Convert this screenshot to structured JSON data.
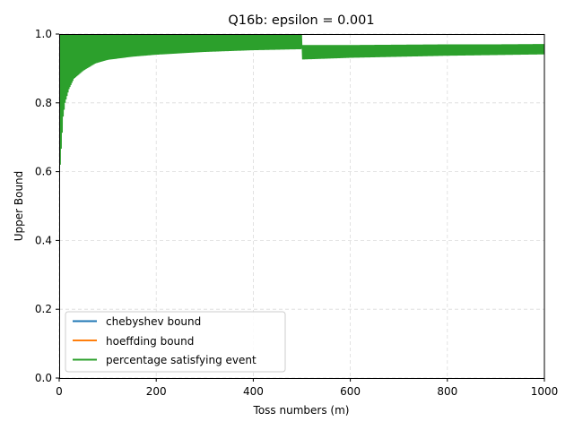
{
  "chart_data": {
    "type": "line",
    "title": "Q16b: epsilon = 0.001",
    "xlabel": "Toss numbers (m)",
    "ylabel": "Upper Bound",
    "xlim": [
      0,
      1000
    ],
    "ylim": [
      0,
      1.0
    ],
    "xticks": [
      0,
      200,
      400,
      600,
      800,
      1000
    ],
    "xtick_labels": [
      "0",
      "200",
      "400",
      "600",
      "800",
      "1000"
    ],
    "yticks": [
      0.0,
      0.2,
      0.4,
      0.6,
      0.8,
      1.0
    ],
    "ytick_labels": [
      "0.0",
      "0.2",
      "0.4",
      "0.6",
      "0.8",
      "1.0"
    ],
    "grid": true,
    "legend_position": "lower-left",
    "series": [
      {
        "name": "chebyshev bound",
        "color": "#1f77b4",
        "x": [
          1,
          1000
        ],
        "y": [
          1.0,
          1.0
        ]
      },
      {
        "name": "hoeffding bound",
        "color": "#ff7f0e",
        "x": [
          1,
          1000
        ],
        "y": [
          1.0,
          1.0
        ]
      },
      {
        "name": "percentage satisfying event",
        "color": "#2ca02c",
        "style": "oscillating band",
        "x": [
          1,
          2,
          5,
          8,
          12,
          20,
          30,
          50,
          75,
          100,
          150,
          200,
          300,
          400,
          499,
          500,
          501,
          600,
          700,
          800,
          900,
          1000
        ],
        "y_upper": [
          1.0,
          1.0,
          1.0,
          1.0,
          1.0,
          1.0,
          1.0,
          1.0,
          1.0,
          1.0,
          1.0,
          1.0,
          1.0,
          1.0,
          1.0,
          1.0,
          0.968,
          0.968,
          0.969,
          0.97,
          0.97,
          0.971
        ],
        "y_lower": [
          0.58,
          0.62,
          0.69,
          0.76,
          0.8,
          0.84,
          0.87,
          0.894,
          0.915,
          0.925,
          0.934,
          0.94,
          0.948,
          0.953,
          0.956,
          0.958,
          0.926,
          0.931,
          0.934,
          0.937,
          0.939,
          0.941
        ]
      }
    ]
  }
}
